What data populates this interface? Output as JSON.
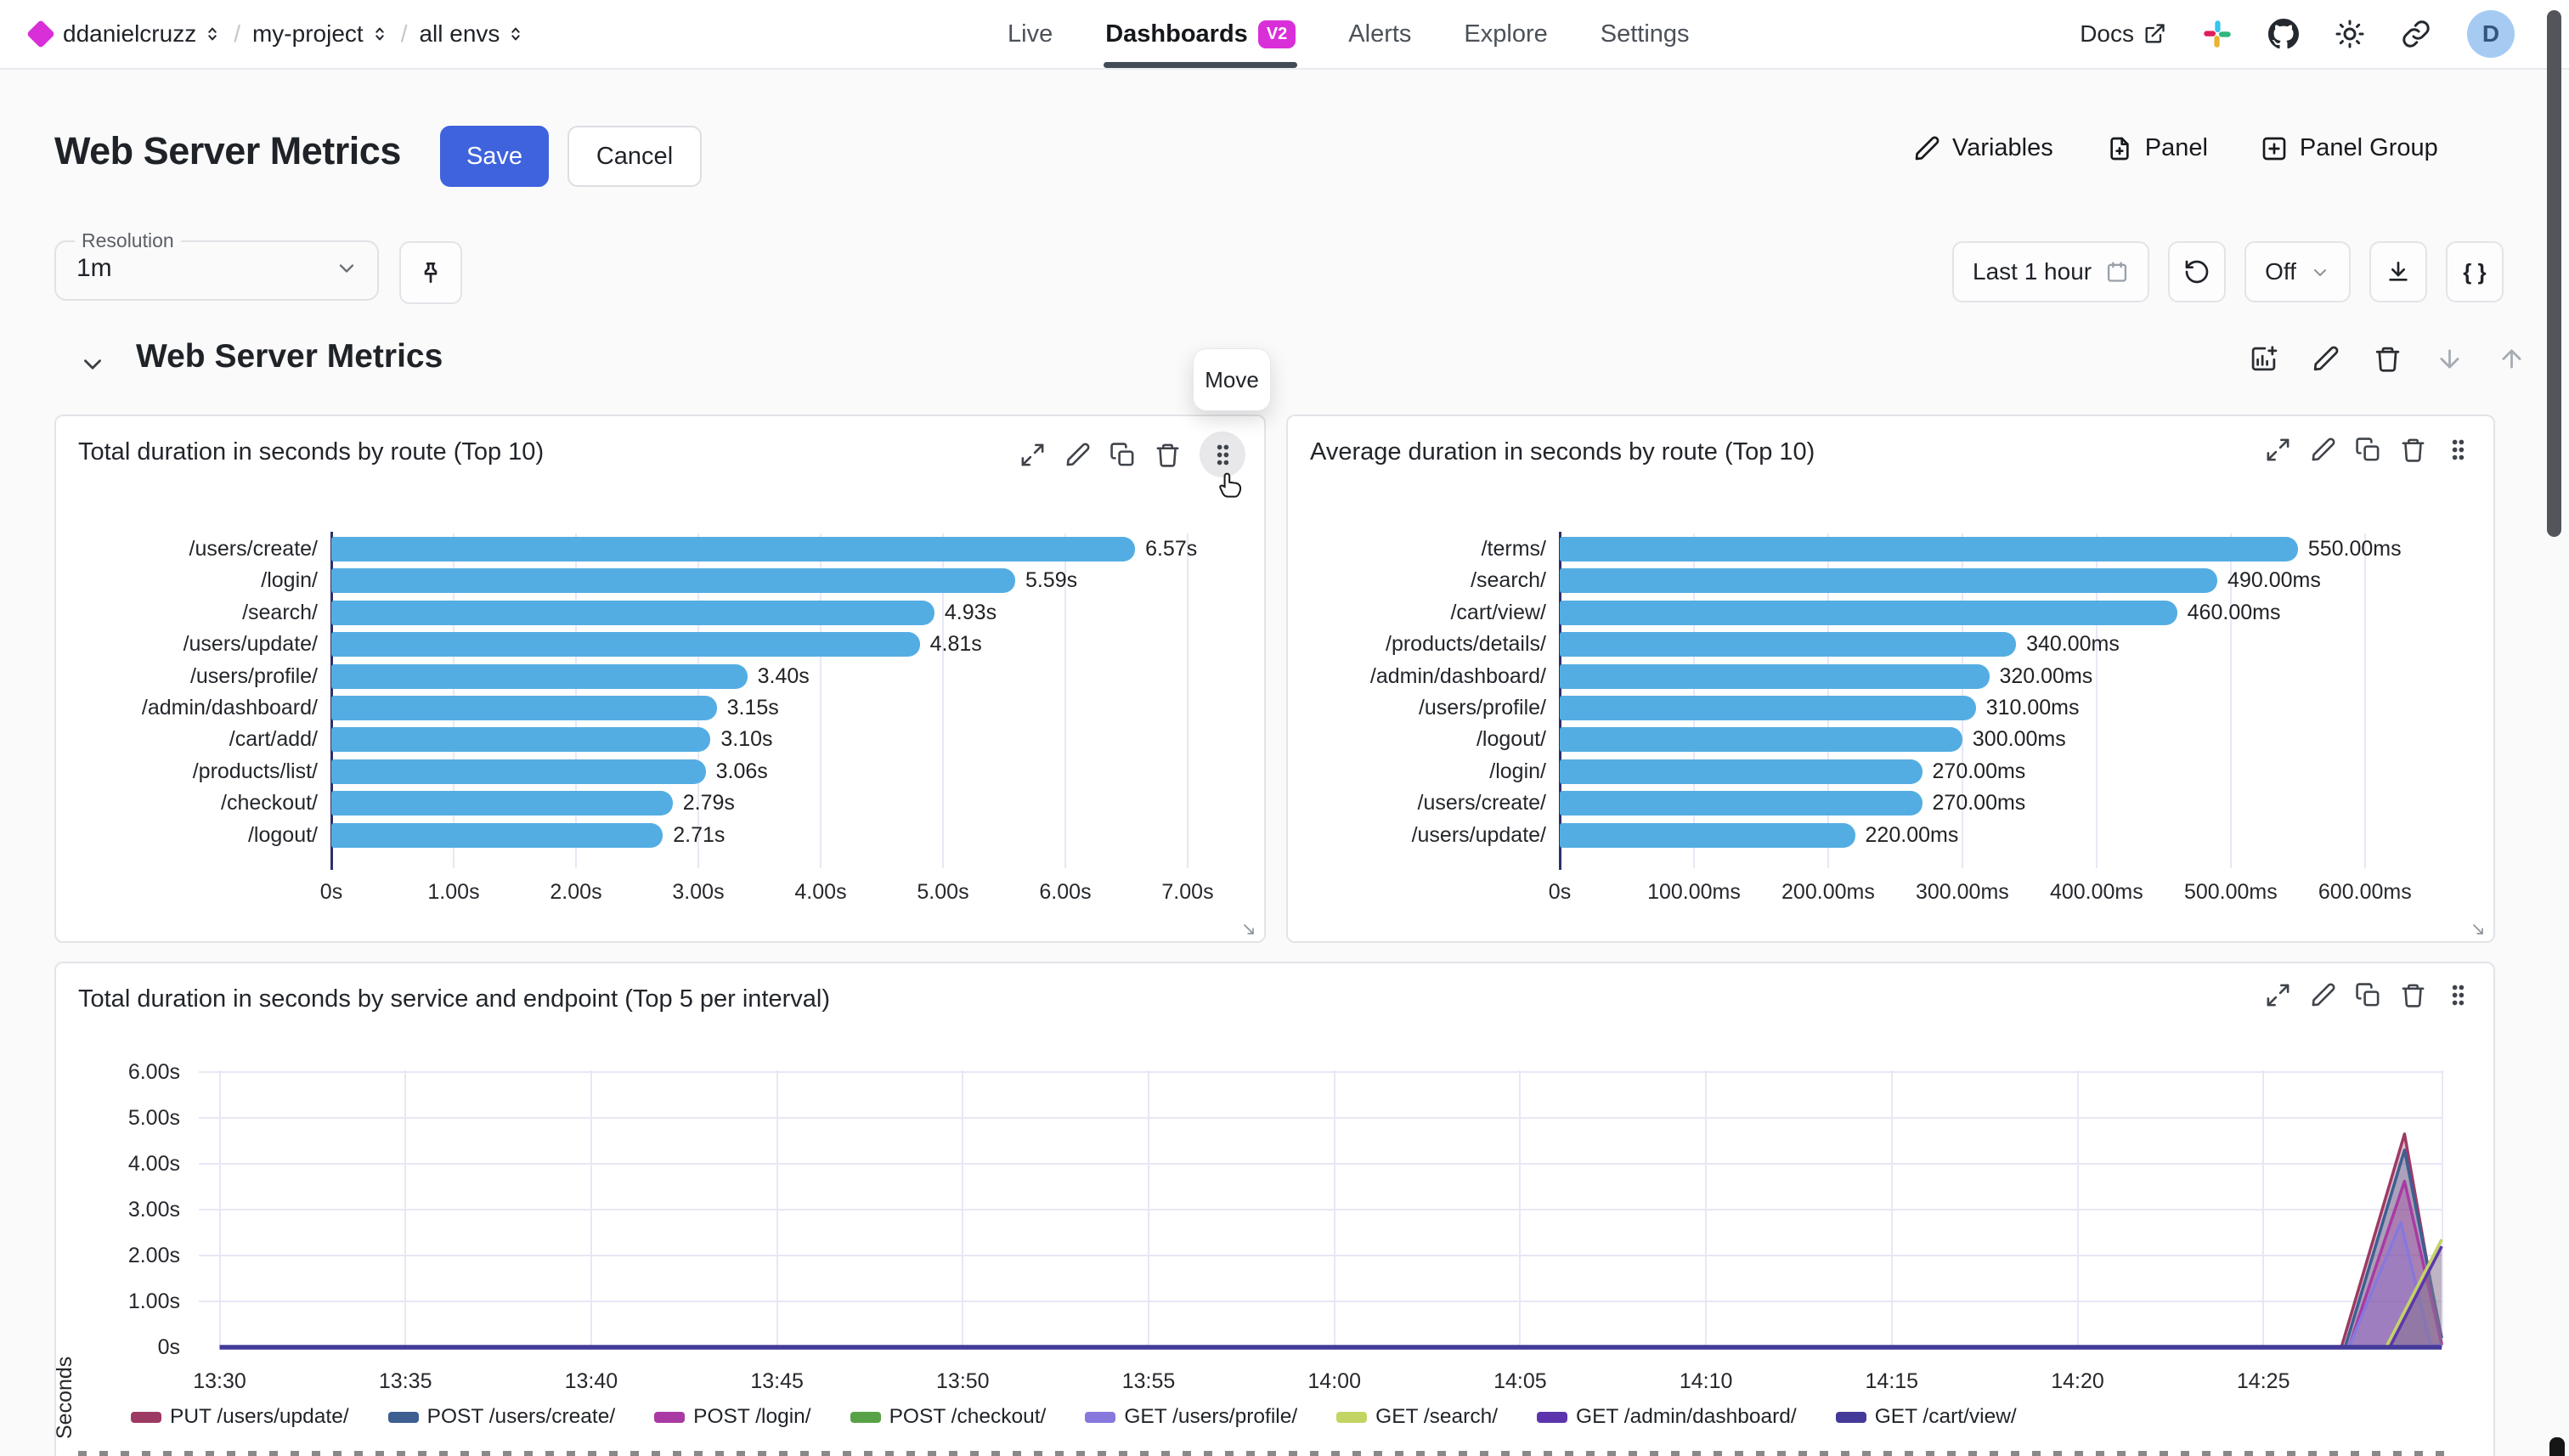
{
  "colors": {
    "accent_magenta": "#d92fd9",
    "save_blue": "#3e63dd",
    "bar_blue": "#54ade2",
    "axis_dark": "#2c3169",
    "grid": "#e9e7f5",
    "tab_underline": "#414b59",
    "avatar_bg": "#a5cbf2",
    "avatar_text": "#33557f"
  },
  "nav": {
    "breadcrumb": {
      "org": "ddanielcruzz",
      "project": "my-project",
      "env": "all envs"
    },
    "tabs": [
      {
        "label": "Live",
        "active": false,
        "badge": ""
      },
      {
        "label": "Dashboards",
        "active": true,
        "badge": "V2"
      },
      {
        "label": "Alerts",
        "active": false,
        "badge": ""
      },
      {
        "label": "Explore",
        "active": false,
        "badge": ""
      },
      {
        "label": "Settings",
        "active": false,
        "badge": ""
      }
    ],
    "docs_label": "Docs",
    "avatar_initial": "D"
  },
  "header": {
    "title": "Web Server Metrics",
    "save_label": "Save",
    "cancel_label": "Cancel",
    "actions": [
      {
        "label": "Variables",
        "icon": "edit"
      },
      {
        "label": "Panel",
        "icon": "file-plus"
      },
      {
        "label": "Panel Group",
        "icon": "plus-square"
      }
    ]
  },
  "controls": {
    "resolution_label": "Resolution",
    "resolution_value": "1m",
    "time_range": "Last 1 hour",
    "refresh_interval": "Off",
    "braces_label": "{ }"
  },
  "section": {
    "title": "Web Server Metrics",
    "move_tooltip": "Move",
    "icons": [
      "add-chart",
      "edit",
      "trash",
      "arrow-down",
      "arrow-up"
    ]
  },
  "panel_icons": [
    "expand",
    "edit",
    "copy",
    "trash",
    "grip"
  ],
  "chart_data": [
    {
      "id": "total-duration-by-route",
      "type": "bar",
      "orientation": "horizontal",
      "title": "Total duration in seconds by route (Top 10)",
      "unit": "s",
      "categories": [
        "/users/create/",
        "/login/",
        "/search/",
        "/users/update/",
        "/users/profile/",
        "/admin/dashboard/",
        "/cart/add/",
        "/products/list/",
        "/checkout/",
        "/logout/"
      ],
      "values": [
        6.57,
        5.59,
        4.93,
        4.81,
        3.4,
        3.15,
        3.1,
        3.06,
        2.79,
        2.71
      ],
      "value_labels": [
        "6.57s",
        "5.59s",
        "4.93s",
        "4.81s",
        "3.40s",
        "3.15s",
        "3.10s",
        "3.06s",
        "2.79s",
        "2.71s"
      ],
      "x_ticks": [
        {
          "v": 0,
          "label": "0s"
        },
        {
          "v": 1,
          "label": "1.00s"
        },
        {
          "v": 2,
          "label": "2.00s"
        },
        {
          "v": 3,
          "label": "3.00s"
        },
        {
          "v": 4,
          "label": "4.00s"
        },
        {
          "v": 5,
          "label": "5.00s"
        },
        {
          "v": 6,
          "label": "6.00s"
        },
        {
          "v": 7,
          "label": "7.00s"
        }
      ],
      "xlim": [
        0,
        7.5
      ],
      "bar_color": "#54ade2"
    },
    {
      "id": "avg-duration-by-route",
      "type": "bar",
      "orientation": "horizontal",
      "title": "Average duration in seconds by route (Top 10)",
      "unit": "ms",
      "categories": [
        "/terms/",
        "/search/",
        "/cart/view/",
        "/products/details/",
        "/admin/dashboard/",
        "/users/profile/",
        "/logout/",
        "/login/",
        "/users/create/",
        "/users/update/"
      ],
      "values": [
        550,
        490,
        460,
        340,
        320,
        310,
        300,
        270,
        270,
        220
      ],
      "value_labels": [
        "550.00ms",
        "490.00ms",
        "460.00ms",
        "340.00ms",
        "320.00ms",
        "310.00ms",
        "300.00ms",
        "270.00ms",
        "270.00ms",
        "220.00ms"
      ],
      "x_ticks": [
        {
          "v": 0,
          "label": "0s"
        },
        {
          "v": 100,
          "label": "100.00ms"
        },
        {
          "v": 200,
          "label": "200.00ms"
        },
        {
          "v": 300,
          "label": "300.00ms"
        },
        {
          "v": 400,
          "label": "400.00ms"
        },
        {
          "v": 500,
          "label": "500.00ms"
        },
        {
          "v": 600,
          "label": "600.00ms"
        }
      ],
      "xlim": [
        0,
        640
      ],
      "bar_color": "#54ade2"
    },
    {
      "id": "duration-by-service-endpoint",
      "type": "area",
      "title": "Total duration in seconds by service and endpoint (Top 5 per interval)",
      "ylabel": "Seconds",
      "y_ticks": [
        {
          "v": 0,
          "label": "0s"
        },
        {
          "v": 1,
          "label": "1.00s"
        },
        {
          "v": 2,
          "label": "2.00s"
        },
        {
          "v": 3,
          "label": "3.00s"
        },
        {
          "v": 4,
          "label": "4.00s"
        },
        {
          "v": 5,
          "label": "5.00s"
        },
        {
          "v": 6,
          "label": "6.00s"
        }
      ],
      "x_ticks": [
        "13:30",
        "13:35",
        "13:40",
        "13:45",
        "13:50",
        "13:55",
        "14:00",
        "14:05",
        "14:10",
        "14:15",
        "14:20",
        "14:25"
      ],
      "x_tick_interval_min": 5,
      "x_range_min": [
        0,
        59.9
      ],
      "grid": true,
      "legend_position": "bottom",
      "series": [
        {
          "name": "PUT /users/update/",
          "color": "#9d3a64",
          "points": [
            [
              0,
              0
            ],
            [
              57.1,
              0
            ],
            [
              58.8,
              4.65
            ],
            [
              59.8,
              0.05
            ]
          ]
        },
        {
          "name": "POST /users/create/",
          "color": "#3d5f92",
          "points": [
            [
              0,
              0
            ],
            [
              57.2,
              0
            ],
            [
              58.8,
              4.3
            ],
            [
              59.8,
              0.2
            ]
          ]
        },
        {
          "name": "POST /login/",
          "color": "#a93aa3",
          "points": [
            [
              0,
              0
            ],
            [
              57.3,
              0
            ],
            [
              58.8,
              3.62
            ],
            [
              59.8,
              0.05
            ]
          ]
        },
        {
          "name": "POST /checkout/",
          "color": "#57a246",
          "points": [
            [
              0,
              0
            ],
            [
              59.8,
              0
            ]
          ]
        },
        {
          "name": "GET /users/profile/",
          "color": "#8678dc",
          "points": [
            [
              0,
              0
            ],
            [
              57.3,
              0
            ],
            [
              58.7,
              2.72
            ],
            [
              59.5,
              0.05
            ],
            [
              59.8,
              0.05
            ]
          ]
        },
        {
          "name": "GET /search/",
          "color": "#c3d465",
          "points": [
            [
              0,
              0
            ],
            [
              58.3,
              0
            ],
            [
              59.8,
              2.35
            ]
          ]
        },
        {
          "name": "GET /admin/dashboard/",
          "color": "#5c35ad",
          "points": [
            [
              0,
              0
            ],
            [
              58.4,
              0
            ],
            [
              59.8,
              2.2
            ]
          ]
        },
        {
          "name": "GET /cart/view/",
          "color": "#443a9a",
          "points": [
            [
              0,
              0
            ],
            [
              59.8,
              0
            ]
          ]
        }
      ]
    }
  ]
}
